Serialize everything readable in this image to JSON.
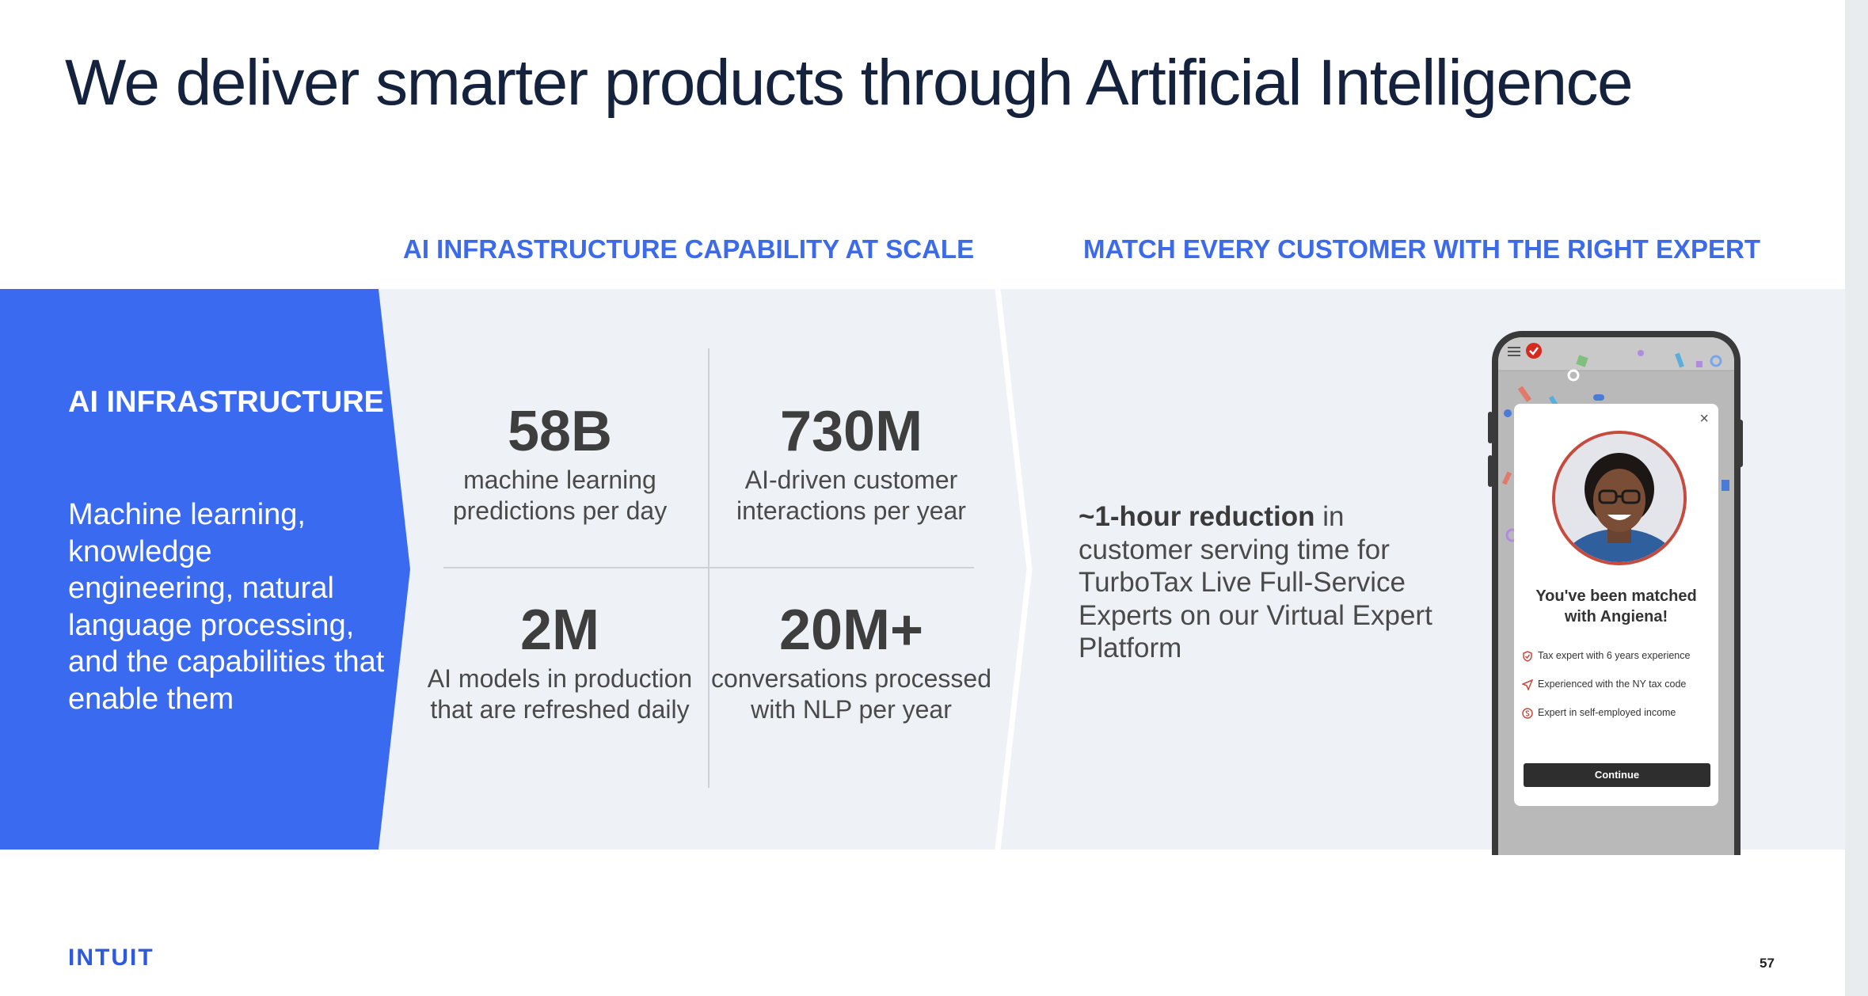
{
  "slide": {
    "title": "We deliver smarter products through Artificial Intelligence",
    "left_header": "AI INFRASTRUCTURE CAPABILITY AT SCALE",
    "right_header": "MATCH EVERY CUSTOMER WITH THE RIGHT EXPERT",
    "page_number": "57",
    "logo_text": "INTUIT"
  },
  "ai_panel": {
    "title": "AI INFRASTRUCTURE",
    "body": "Machine learning, knowledge engineering, natural language processing, and the capabilities that enable them"
  },
  "stats": [
    {
      "value": "58B",
      "label": "machine learning predictions per day"
    },
    {
      "value": "730M",
      "label": "AI-driven customer interactions per year"
    },
    {
      "value": "2M",
      "label": "AI models in production that are refreshed daily"
    },
    {
      "value": "20M+",
      "label": "conversations processed with NLP per year"
    }
  ],
  "expert": {
    "highlight": "~1-hour reduction",
    "rest": " in customer serving time for TurboTax Live Full-Service Experts on our Virtual Expert Platform"
  },
  "phone": {
    "matched_text": "You've been matched with Angiena!",
    "features": [
      "Tax expert with 6 years experience",
      "Experienced with the NY tax code",
      "Expert in self-employed income"
    ],
    "continue_label": "Continue",
    "close_symbol": "×"
  },
  "colors": {
    "accent_blue": "#3d6ae8",
    "panel_blue": "#3a6af0",
    "band": "#eef2f7",
    "title_navy": "#14223e",
    "expert_ring": "#c64a3e"
  }
}
